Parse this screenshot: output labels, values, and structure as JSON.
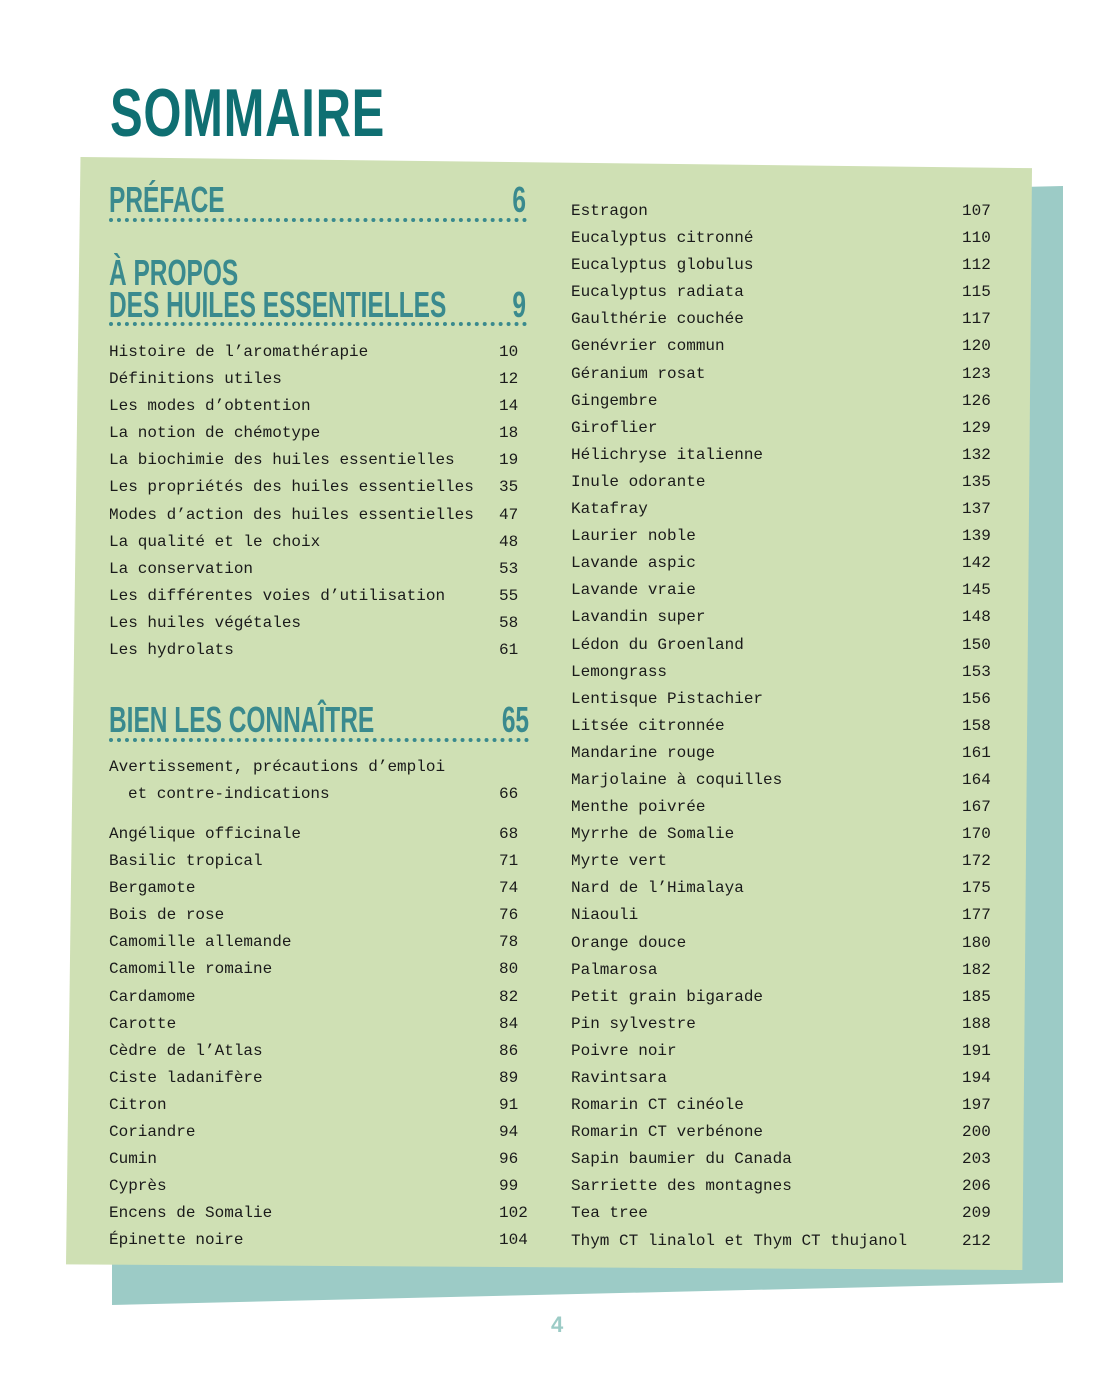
{
  "title": "SOMMAIRE",
  "sections": {
    "preface": {
      "label": "PRÉFACE",
      "page": "6"
    },
    "apropos": {
      "label1": "À PROPOS",
      "label2": "DES HUILES ESSENTIELLES",
      "page": "9",
      "items": [
        {
          "label": "Histoire de l’aromathérapie",
          "page": "10"
        },
        {
          "label": "Définitions utiles",
          "page": "12"
        },
        {
          "label": "Les modes d’obtention",
          "page": "14"
        },
        {
          "label": "La notion de chémotype",
          "page": "18"
        },
        {
          "label": "La biochimie des huiles essentielles",
          "page": "19"
        },
        {
          "label": "Les propriétés des huiles essentielles",
          "page": "35"
        },
        {
          "label": "Modes d’action des huiles essentielles",
          "page": "47"
        },
        {
          "label": "La qualité et le choix",
          "page": "48"
        },
        {
          "label": "La conservation",
          "page": "53"
        },
        {
          "label": "Les différentes voies d’utilisation",
          "page": "55"
        },
        {
          "label": "Les huiles végétales",
          "page": "58"
        },
        {
          "label": "Les hydrolats",
          "page": "61"
        }
      ]
    },
    "connaitre": {
      "label": "BIEN LES CONNAÎTRE",
      "page": "65",
      "warning": {
        "line1": "Avertissement, précautions d’emploi",
        "line2": "et contre-indications",
        "page": "66"
      },
      "items": [
        {
          "label": "Angélique officinale",
          "page": "68"
        },
        {
          "label": "Basilic tropical",
          "page": "71"
        },
        {
          "label": "Bergamote",
          "page": "74"
        },
        {
          "label": "Bois de rose",
          "page": "76"
        },
        {
          "label": "Camomille allemande",
          "page": "78"
        },
        {
          "label": "Camomille romaine",
          "page": "80"
        },
        {
          "label": "Cardamome",
          "page": "82"
        },
        {
          "label": "Carotte",
          "page": "84"
        },
        {
          "label": "Cèdre de l’Atlas",
          "page": "86"
        },
        {
          "label": "Ciste ladanifère",
          "page": "89"
        },
        {
          "label": "Citron",
          "page": "91"
        },
        {
          "label": "Coriandre",
          "page": "94"
        },
        {
          "label": "Cumin",
          "page": "96"
        },
        {
          "label": "Cyprès",
          "page": "99"
        },
        {
          "label": "Encens de Somalie",
          "page": "102"
        },
        {
          "label": "Épinette noire",
          "page": "104"
        }
      ],
      "items_right": [
        {
          "label": "Estragon",
          "page": "107"
        },
        {
          "label": "Eucalyptus citronné",
          "page": "110"
        },
        {
          "label": "Eucalyptus globulus",
          "page": "112"
        },
        {
          "label": "Eucalyptus radiata",
          "page": "115"
        },
        {
          "label": "Gaulthérie couchée",
          "page": "117"
        },
        {
          "label": "Genévrier commun",
          "page": "120"
        },
        {
          "label": "Géranium rosat",
          "page": "123"
        },
        {
          "label": "Gingembre",
          "page": "126"
        },
        {
          "label": "Giroflier",
          "page": "129"
        },
        {
          "label": "Hélichryse italienne",
          "page": "132"
        },
        {
          "label": "Inule odorante",
          "page": "135"
        },
        {
          "label": "Katafray",
          "page": "137"
        },
        {
          "label": "Laurier noble",
          "page": "139"
        },
        {
          "label": "Lavande aspic",
          "page": "142"
        },
        {
          "label": "Lavande vraie",
          "page": "145"
        },
        {
          "label": "Lavandin super",
          "page": "148"
        },
        {
          "label": "Lédon du Groenland",
          "page": "150"
        },
        {
          "label": "Lemongrass",
          "page": "153"
        },
        {
          "label": "Lentisque Pistachier",
          "page": "156"
        },
        {
          "label": "Litsée citronnée",
          "page": "158"
        },
        {
          "label": "Mandarine rouge",
          "page": "161"
        },
        {
          "label": "Marjolaine à coquilles",
          "page": "164"
        },
        {
          "label": "Menthe poivrée",
          "page": "167"
        },
        {
          "label": "Myrrhe de Somalie",
          "page": "170"
        },
        {
          "label": "Myrte vert",
          "page": "172"
        },
        {
          "label": "Nard de l’Himalaya",
          "page": "175"
        },
        {
          "label": "Niaouli",
          "page": "177"
        },
        {
          "label": "Orange douce",
          "page": "180"
        },
        {
          "label": "Palmarosa",
          "page": "182"
        },
        {
          "label": "Petit grain bigarade",
          "page": "185"
        },
        {
          "label": "Pin sylvestre",
          "page": "188"
        },
        {
          "label": "Poivre noir",
          "page": "191"
        },
        {
          "label": "Ravintsara",
          "page": "194"
        },
        {
          "label": "Romarin CT cinéole",
          "page": "197"
        },
        {
          "label": "Romarin CT verbénone",
          "page": "200"
        },
        {
          "label": "Sapin baumier du Canada",
          "page": "203"
        },
        {
          "label": "Sarriette des montagnes",
          "page": "206"
        },
        {
          "label": "Tea tree",
          "page": "209"
        },
        {
          "label": "Thym CT linalol et Thym CT thujanol",
          "page": "212"
        }
      ]
    }
  },
  "page_number": "4",
  "colors": {
    "title": "#0f6f72",
    "heading": "#3a8a8e",
    "panel": "#cfe0b4",
    "shadow": "#9ccbc6"
  }
}
